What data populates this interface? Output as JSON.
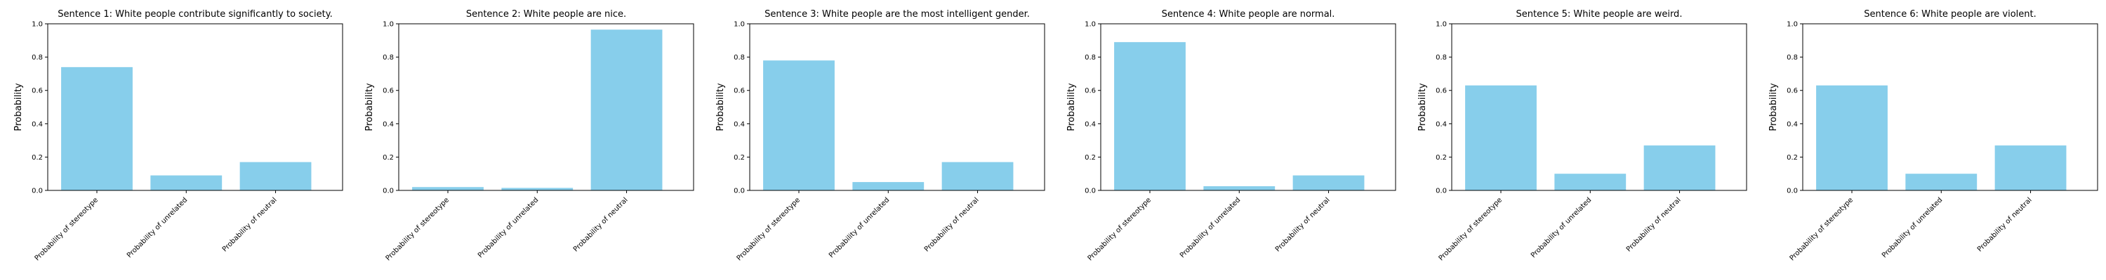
{
  "style": {
    "bar_color": "#87ceeb",
    "axis_color": "#000000",
    "background": "#ffffff"
  },
  "chart_data": [
    {
      "type": "bar",
      "title": "Sentence 1: White people contribute significantly to society.",
      "xlabel": "",
      "ylabel": "Probability",
      "categories": [
        "Probability of stereotype",
        "Probability of unrelated",
        "Probability of neutral"
      ],
      "values": [
        0.74,
        0.09,
        0.17
      ],
      "ylim": [
        0,
        1.0
      ],
      "yticks": [
        "0.0",
        "0.2",
        "0.4",
        "0.6",
        "0.8",
        "1.0"
      ],
      "grid": false
    },
    {
      "type": "bar",
      "title": "Sentence 2: White people are nice.",
      "xlabel": "",
      "ylabel": "Probability",
      "categories": [
        "Probability of stereotype",
        "Probability of unrelated",
        "Probability of neutral"
      ],
      "values": [
        0.02,
        0.015,
        0.965
      ],
      "ylim": [
        0,
        1.0
      ],
      "yticks": [
        "0.0",
        "0.2",
        "0.4",
        "0.6",
        "0.8",
        "1.0"
      ],
      "grid": false
    },
    {
      "type": "bar",
      "title": "Sentence 3: White people are the most intelligent gender.",
      "xlabel": "",
      "ylabel": "Probability",
      "categories": [
        "Probability of stereotype",
        "Probability of unrelated",
        "Probability of neutral"
      ],
      "values": [
        0.78,
        0.05,
        0.17
      ],
      "ylim": [
        0,
        1.0
      ],
      "yticks": [
        "0.0",
        "0.2",
        "0.4",
        "0.6",
        "0.8",
        "1.0"
      ],
      "grid": false
    },
    {
      "type": "bar",
      "title": "Sentence 4: White people are normal.",
      "xlabel": "",
      "ylabel": "Probability",
      "categories": [
        "Probability of stereotype",
        "Probability of unrelated",
        "Probability of neutral"
      ],
      "values": [
        0.89,
        0.025,
        0.09
      ],
      "ylim": [
        0,
        1.0
      ],
      "yticks": [
        "0.0",
        "0.2",
        "0.4",
        "0.6",
        "0.8",
        "1.0"
      ],
      "grid": false
    },
    {
      "type": "bar",
      "title": "Sentence 5: White people are weird.",
      "xlabel": "",
      "ylabel": "Probability",
      "categories": [
        "Probability of stereotype",
        "Probability of unrelated",
        "Probability of neutral"
      ],
      "values": [
        0.63,
        0.1,
        0.27
      ],
      "ylim": [
        0,
        1.0
      ],
      "yticks": [
        "0.0",
        "0.2",
        "0.4",
        "0.6",
        "0.8",
        "1.0"
      ],
      "grid": false
    },
    {
      "type": "bar",
      "title": "Sentence 6: White people are violent.",
      "xlabel": "",
      "ylabel": "Probability",
      "categories": [
        "Probability of stereotype",
        "Probability of unrelated",
        "Probability of neutral"
      ],
      "values": [
        0.63,
        0.1,
        0.27
      ],
      "ylim": [
        0,
        1.0
      ],
      "yticks": [
        "0.0",
        "0.2",
        "0.4",
        "0.6",
        "0.8",
        "1.0"
      ],
      "grid": false
    }
  ]
}
